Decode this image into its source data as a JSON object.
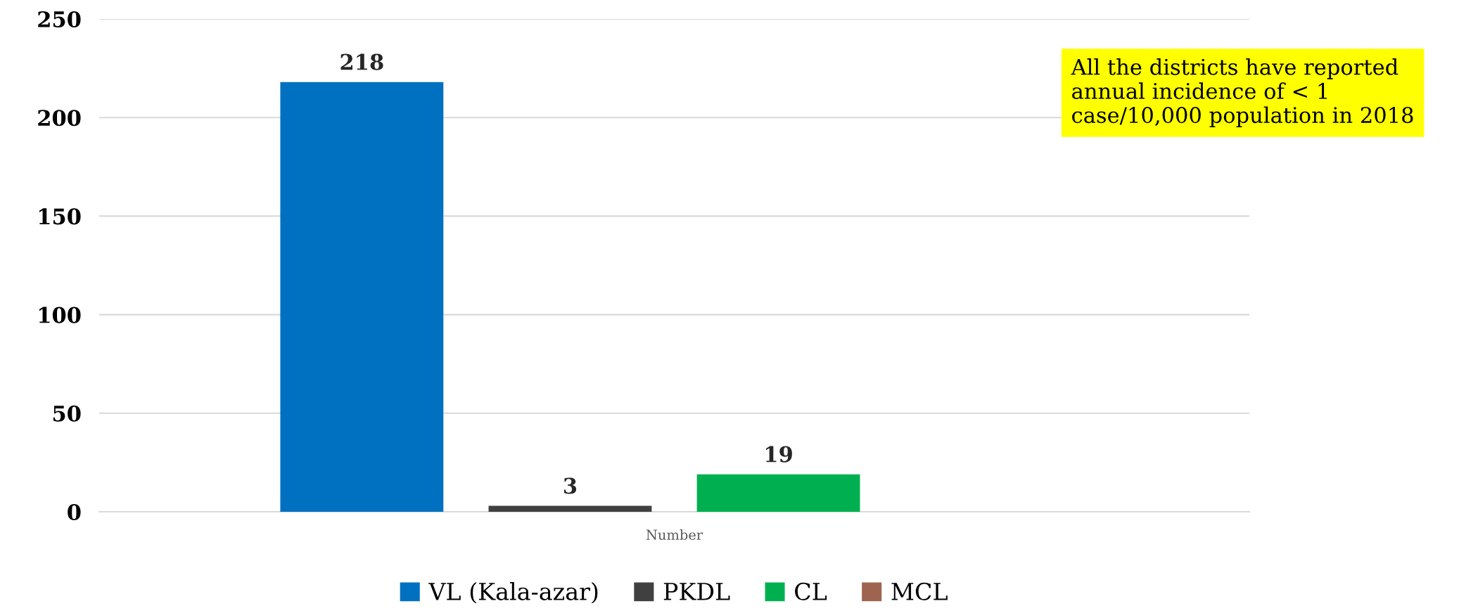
{
  "chart_data": {
    "type": "bar",
    "categories": [
      "Number"
    ],
    "series": [
      {
        "name": "VL (Kala-azar)",
        "color": "#0070c0",
        "values": [
          218
        ],
        "value_labels": [
          "218"
        ]
      },
      {
        "name": "PKDL",
        "color": "#404040",
        "values": [
          3
        ],
        "value_labels": [
          "3"
        ]
      },
      {
        "name": "CL",
        "color": "#00b050",
        "values": [
          19
        ],
        "value_labels": [
          "19"
        ]
      },
      {
        "name": "MCL",
        "color": "#9e6450",
        "values": [
          0
        ],
        "value_labels": [
          null
        ]
      }
    ],
    "ylim": [
      0,
      250
    ],
    "yticks": [
      0,
      50,
      100,
      150,
      200,
      250
    ],
    "grid": "y",
    "legend": "bottom",
    "annotations": [
      "All the districts have reported annual incidence of < 1 case/10,000 population in 2018"
    ]
  }
}
